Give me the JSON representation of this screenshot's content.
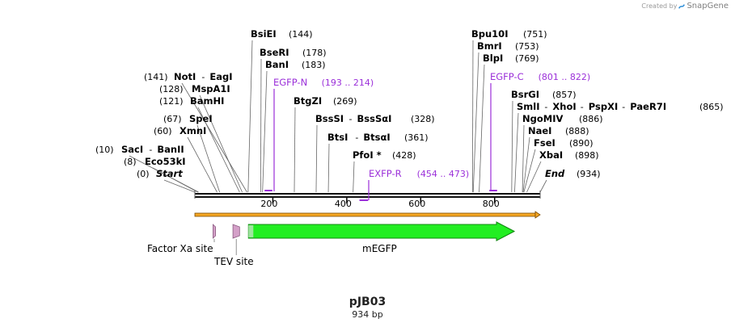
{
  "plasmid": {
    "name": "pJB03",
    "size_label": "934 bp",
    "length": 934
  },
  "credit": {
    "prefix": "Created by",
    "brand": "SnapGene"
  },
  "colors": {
    "primer": "#9b30d9",
    "backbone": "#111111",
    "ruler": "#f5a623",
    "gfp": "#22ee22",
    "gfp_stroke": "#118811",
    "site": "#d4a0c8",
    "site_stroke": "#8a5a80"
  },
  "ruler": {
    "ticks": [
      200,
      400,
      600,
      800
    ],
    "labels": [
      "200",
      "400",
      "600",
      "800"
    ]
  },
  "enzymes": [
    {
      "name": "BsiEI",
      "pos_label": "(144)",
      "pos": 144
    },
    {
      "name": "BseRI",
      "pos_label": "(178)",
      "pos": 178
    },
    {
      "name": "BanI",
      "pos_label": "(183)",
      "pos": 183
    },
    {
      "name": "NotI",
      "partner": "EagI",
      "pos_label": "(141)",
      "pos": 141
    },
    {
      "name": "MspA1I",
      "pos_label": "(128)",
      "pos": 128
    },
    {
      "name": "BamHI",
      "pos_label": "(121)",
      "pos": 121
    },
    {
      "name": "SpeI",
      "pos_label": "(67)",
      "pos": 67
    },
    {
      "name": "XmnI",
      "pos_label": "(60)",
      "pos": 60
    },
    {
      "name": "SacI",
      "partner": "BanII",
      "pos_label": "(10)",
      "pos": 10
    },
    {
      "name": "Eco53kI",
      "pos_label": "(8)",
      "pos": 8
    },
    {
      "name": "Start",
      "pos_label": "(0)",
      "pos": 0,
      "italic": true
    },
    {
      "name": "BtgZI",
      "pos_label": "(269)",
      "pos": 269
    },
    {
      "name": "BssSI",
      "partner": "BssSαI",
      "pos_label": "(328)",
      "pos": 328
    },
    {
      "name": "BtsI",
      "partner": "BtsαI",
      "pos_label": "(361)",
      "pos": 361
    },
    {
      "name": "PfoI *",
      "pos_label": "(428)",
      "pos": 428
    },
    {
      "name": "Bpu10I",
      "pos_label": "(751)",
      "pos": 751
    },
    {
      "name": "BmrI",
      "pos_label": "(753)",
      "pos": 753
    },
    {
      "name": "BlpI",
      "pos_label": "(769)",
      "pos": 769
    },
    {
      "name": "BsrGI",
      "pos_label": "(857)",
      "pos": 857
    },
    {
      "name": "SmlI",
      "partner": "XhoI",
      "partner2": "PspXI",
      "partner3": "PaeR7I",
      "pos_label": "(865)",
      "pos": 865
    },
    {
      "name": "NgoMIV",
      "pos_label": "(886)",
      "pos": 886
    },
    {
      "name": "NaeI",
      "pos_label": "(888)",
      "pos": 888
    },
    {
      "name": "FseI",
      "pos_label": "(890)",
      "pos": 890
    },
    {
      "name": "XbaI",
      "pos_label": "(898)",
      "pos": 898
    },
    {
      "name": "End",
      "pos_label": "(934)",
      "pos": 934,
      "italic": true
    }
  ],
  "primers": [
    {
      "name": "EGFP-N",
      "range_label": "(193 .. 214)",
      "start": 193,
      "end": 214,
      "strand": "forward"
    },
    {
      "name": "EXFP-R",
      "range_label": "(454 .. 473)",
      "start": 454,
      "end": 473,
      "strand": "reverse"
    },
    {
      "name": "EGFP-C",
      "range_label": "(801 .. 822)",
      "start": 801,
      "end": 822,
      "strand": "forward"
    }
  ],
  "features": [
    {
      "name": "Factor Xa site",
      "start": 49,
      "end": 56,
      "kind": "site"
    },
    {
      "name": "TEV site",
      "start": 103,
      "end": 121,
      "kind": "site"
    },
    {
      "name": "mEGFP",
      "start": 145,
      "end": 864,
      "kind": "cds"
    }
  ]
}
